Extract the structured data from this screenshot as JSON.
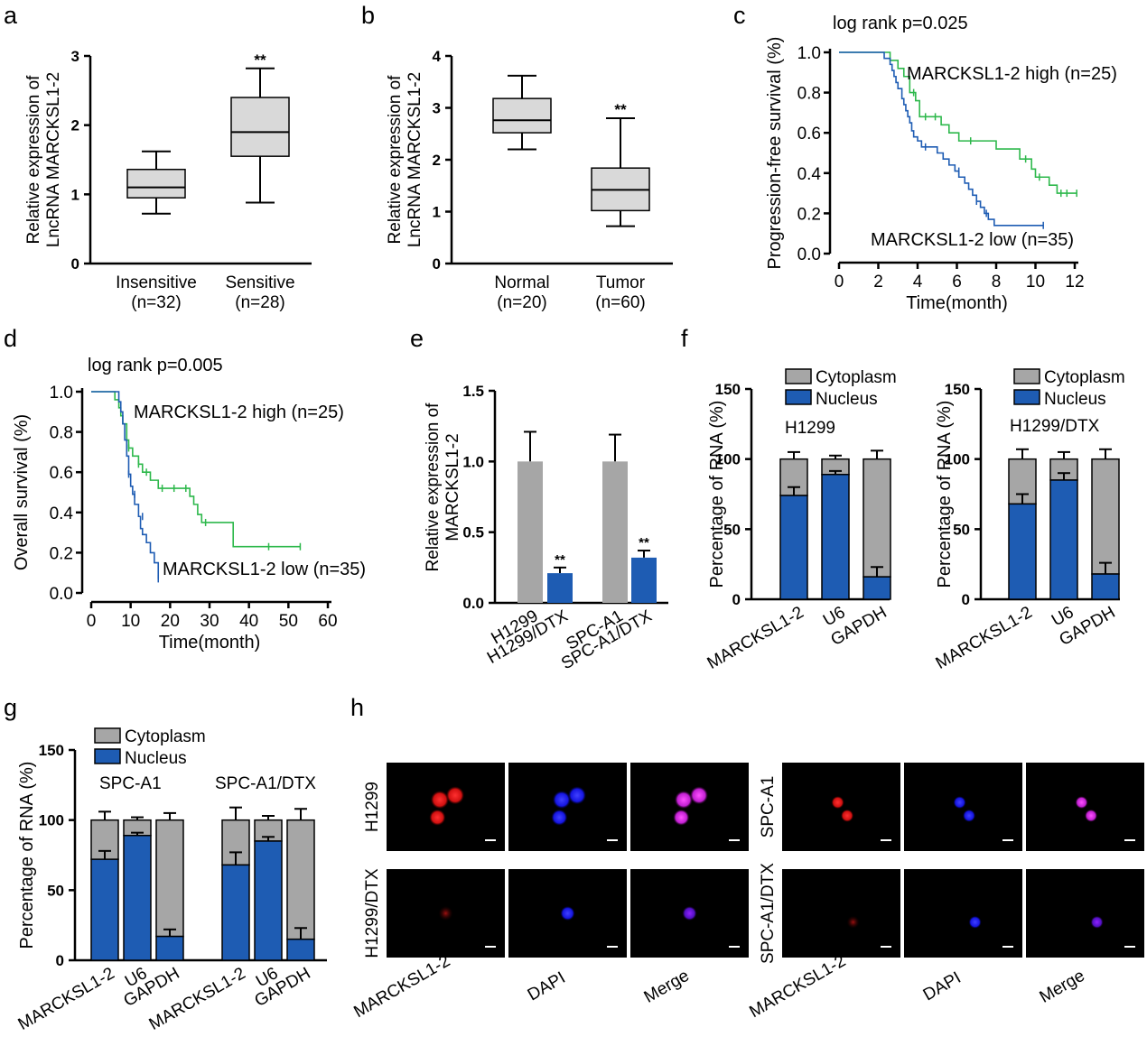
{
  "colors": {
    "gray": "#a6a6a6",
    "box": "#d9d9d9",
    "blue": "#1e5cb3",
    "green": "#2db84b",
    "bg": "#ffffff",
    "black": "#000000"
  },
  "panel_labels": [
    "a",
    "b",
    "c",
    "d",
    "e",
    "f",
    "g",
    "h"
  ],
  "chart_data": [
    {
      "panel": "a",
      "type": "box",
      "ylabel_lines": [
        "Relative expression of",
        "LncRNA MARCKSL1-2"
      ],
      "ylim": [
        0,
        3
      ],
      "yticks": [
        0,
        1,
        2,
        3
      ],
      "categories": [
        {
          "label": [
            "Insensitive",
            "(n=32)"
          ],
          "min": 0.72,
          "q1": 0.95,
          "median": 1.1,
          "q3": 1.36,
          "max": 1.62,
          "sig": ""
        },
        {
          "label": [
            "Sensitive",
            "(n=28)"
          ],
          "min": 0.88,
          "q1": 1.55,
          "median": 1.9,
          "q3": 2.4,
          "max": 2.82,
          "sig": "**"
        }
      ]
    },
    {
      "panel": "b",
      "type": "box",
      "ylabel_lines": [
        "Relative expression of",
        "LncRNA MARCKSL1-2"
      ],
      "ylim": [
        0,
        4
      ],
      "yticks": [
        0,
        1,
        2,
        3,
        4
      ],
      "categories": [
        {
          "label": [
            "Normal",
            "(n=20)"
          ],
          "min": 2.2,
          "q1": 2.52,
          "median": 2.76,
          "q3": 3.18,
          "max": 3.62,
          "sig": ""
        },
        {
          "label": [
            "Tumor",
            "(n=60)"
          ],
          "min": 0.72,
          "q1": 1.02,
          "median": 1.42,
          "q3": 1.84,
          "max": 2.8,
          "sig": "**"
        }
      ]
    },
    {
      "panel": "c",
      "type": "line",
      "annotation": "log rank p=0.025",
      "ylabel": "Progression-free survival (%)",
      "xlabel": "Time(month)",
      "xlim": [
        0,
        12
      ],
      "xticks": [
        0,
        2,
        4,
        6,
        8,
        10,
        12
      ],
      "ylim": [
        0,
        1
      ],
      "yticks": [
        "0.0",
        "0.2",
        "0.4",
        "0.6",
        "0.8",
        "1.0"
      ],
      "series": [
        {
          "name": "MARCKSL1-2 high (n=25)",
          "color": "#2db84b",
          "points": [
            [
              0,
              1
            ],
            [
              1.8,
              1
            ],
            [
              2.6,
              0.96
            ],
            [
              3.0,
              0.92
            ],
            [
              3.3,
              0.88
            ],
            [
              3.6,
              0.8
            ],
            [
              3.9,
              0.76
            ],
            [
              4.1,
              0.68
            ],
            [
              5.2,
              0.64
            ],
            [
              5.6,
              0.6
            ],
            [
              6.1,
              0.56
            ],
            [
              8.0,
              0.52
            ],
            [
              9.2,
              0.47
            ],
            [
              9.8,
              0.42
            ],
            [
              10.0,
              0.38
            ],
            [
              10.7,
              0.34
            ],
            [
              11.1,
              0.3
            ],
            [
              12.1,
              0.3
            ]
          ],
          "censor": [
            [
              3.8,
              0.8
            ],
            [
              4.4,
              0.68
            ],
            [
              4.9,
              0.68
            ],
            [
              6.7,
              0.56
            ],
            [
              9.5,
              0.47
            ],
            [
              10.2,
              0.38
            ],
            [
              11.3,
              0.3
            ],
            [
              11.6,
              0.3
            ],
            [
              12.1,
              0.3
            ]
          ]
        },
        {
          "name": "MARCKSL1-2 low (n=35)",
          "color": "#1e5cb3",
          "points": [
            [
              0,
              1
            ],
            [
              1.8,
              1
            ],
            [
              2.3,
              0.97
            ],
            [
              2.6,
              0.94
            ],
            [
              2.7,
              0.91
            ],
            [
              2.8,
              0.88
            ],
            [
              2.9,
              0.85
            ],
            [
              3.0,
              0.82
            ],
            [
              3.2,
              0.77
            ],
            [
              3.3,
              0.74
            ],
            [
              3.4,
              0.71
            ],
            [
              3.5,
              0.68
            ],
            [
              3.6,
              0.65
            ],
            [
              3.7,
              0.61
            ],
            [
              3.8,
              0.58
            ],
            [
              4.0,
              0.56
            ],
            [
              4.2,
              0.53
            ],
            [
              5.0,
              0.5
            ],
            [
              5.3,
              0.47
            ],
            [
              5.6,
              0.44
            ],
            [
              5.9,
              0.41
            ],
            [
              6.1,
              0.38
            ],
            [
              6.4,
              0.35
            ],
            [
              6.6,
              0.32
            ],
            [
              6.8,
              0.29
            ],
            [
              7.0,
              0.26
            ],
            [
              7.2,
              0.23
            ],
            [
              7.4,
              0.2
            ],
            [
              7.6,
              0.17
            ],
            [
              7.9,
              0.14
            ],
            [
              10.4,
              0.14
            ]
          ],
          "censor": [
            [
              4.4,
              0.53
            ],
            [
              6.1,
              0.41
            ],
            [
              7.0,
              0.26
            ],
            [
              7.5,
              0.2
            ],
            [
              10.4,
              0.14
            ]
          ]
        }
      ]
    },
    {
      "panel": "d",
      "type": "line",
      "annotation": "log rank p=0.005",
      "ylabel": "Overall survival (%)",
      "xlabel": "Time(month)",
      "xlim": [
        0,
        60
      ],
      "xticks": [
        0,
        10,
        20,
        30,
        40,
        50,
        60
      ],
      "ylim": [
        0,
        1
      ],
      "yticks": [
        "0.0",
        "0.2",
        "0.4",
        "0.6",
        "0.8",
        "1.0"
      ],
      "series": [
        {
          "name": "MARCKSL1-2 high (n=25)",
          "color": "#2db84b",
          "points": [
            [
              0,
              1
            ],
            [
              5,
              1
            ],
            [
              6,
              0.96
            ],
            [
              7,
              0.92
            ],
            [
              7.5,
              0.88
            ],
            [
              8,
              0.84
            ],
            [
              9,
              0.76
            ],
            [
              9.5,
              0.72
            ],
            [
              10.5,
              0.68
            ],
            [
              12,
              0.64
            ],
            [
              13,
              0.6
            ],
            [
              15,
              0.56
            ],
            [
              17,
              0.52
            ],
            [
              25,
              0.48
            ],
            [
              26,
              0.44
            ],
            [
              27,
              0.39
            ],
            [
              28,
              0.35
            ],
            [
              36,
              0.23
            ],
            [
              53,
              0.23
            ]
          ],
          "censor": [
            [
              9.5,
              0.72
            ],
            [
              12,
              0.64
            ],
            [
              14,
              0.6
            ],
            [
              18,
              0.52
            ],
            [
              21,
              0.52
            ],
            [
              24,
              0.52
            ],
            [
              29,
              0.35
            ],
            [
              45,
              0.23
            ],
            [
              53,
              0.23
            ]
          ]
        },
        {
          "name": "MARCKSL1-2 low (n=35)",
          "color": "#1e5cb3",
          "points": [
            [
              0,
              1
            ],
            [
              6,
              1
            ],
            [
              7,
              0.95
            ],
            [
              7.5,
              0.9
            ],
            [
              8,
              0.84
            ],
            [
              8.5,
              0.76
            ],
            [
              9,
              0.68
            ],
            [
              9.5,
              0.59
            ],
            [
              10,
              0.53
            ],
            [
              10.5,
              0.49
            ],
            [
              11,
              0.44
            ],
            [
              12,
              0.38
            ],
            [
              12.5,
              0.32
            ],
            [
              13,
              0.29
            ],
            [
              14,
              0.25
            ],
            [
              15,
              0.2
            ],
            [
              16,
              0.15
            ],
            [
              17,
              0.07
            ]
          ],
          "censor": [
            [
              9.5,
              0.59
            ],
            [
              11,
              0.49
            ],
            [
              13,
              0.38
            ],
            [
              17,
              0.07
            ]
          ]
        }
      ]
    },
    {
      "panel": "e",
      "type": "bar",
      "ylabel_lines": [
        "Relative expression of",
        "MARCKSL1-2"
      ],
      "ylim": [
        0,
        1.5
      ],
      "yticks": [
        "0.0",
        "0.5",
        "1.0",
        "1.5"
      ],
      "categories": [
        "H1299",
        "H1299/DTX",
        "SPC-A1",
        "SPC-A1/DTX"
      ],
      "values": [
        1.0,
        0.21,
        1.0,
        0.32
      ],
      "errors": [
        0.21,
        0.04,
        0.19,
        0.05
      ],
      "sig": [
        "",
        "**",
        "",
        "**"
      ]
    },
    {
      "panel": "f",
      "type": "stacked_bar",
      "subtitle": "H1299",
      "ylabel": "Percentage of RNA (%)",
      "ylim": [
        0,
        150
      ],
      "yticks": [
        0,
        50,
        100,
        150
      ],
      "categories": [
        "MARCKSL1-2",
        "U6",
        "GAPDH"
      ],
      "series": [
        {
          "name": "Cytoplasm",
          "values": [
            26,
            11,
            84
          ],
          "errors": [
            5,
            2.5,
            6
          ]
        },
        {
          "name": "Nucleus",
          "values": [
            74,
            89,
            16
          ],
          "errors": [
            6,
            2.5,
            7
          ]
        }
      ]
    },
    {
      "panel": "f2",
      "type": "stacked_bar",
      "subtitle": "H1299/DTX",
      "ylabel": "Percentage of RNA (%)",
      "ylim": [
        0,
        150
      ],
      "yticks": [
        0,
        50,
        100,
        150
      ],
      "categories": [
        "MARCKSL1-2",
        "U6",
        "GAPDH"
      ],
      "series": [
        {
          "name": "Cytoplasm",
          "values": [
            32,
            15,
            82
          ],
          "errors": [
            7,
            5,
            7
          ]
        },
        {
          "name": "Nucleus",
          "values": [
            68,
            85,
            18
          ],
          "errors": [
            7,
            5,
            8
          ]
        }
      ]
    },
    {
      "panel": "g",
      "type": "stacked_bar",
      "ylabel": "Percentage of RNA (%)",
      "ylim": [
        0,
        150
      ],
      "yticks": [
        0,
        50,
        100,
        150
      ],
      "groups": [
        {
          "subtitle": "SPC-A1",
          "categories": [
            "MARCKSL1-2",
            "U6",
            "GAPDH"
          ],
          "series": [
            {
              "name": "Cytoplasm",
              "values": [
                28,
                11,
                83
              ],
              "errors": [
                6,
                2,
                5
              ]
            },
            {
              "name": "Nucleus",
              "values": [
                72,
                89,
                17
              ],
              "errors": [
                6,
                2,
                5
              ]
            }
          ]
        },
        {
          "subtitle": "SPC-A1/DTX",
          "categories": [
            "MARCKSL1-2",
            "U6",
            "GAPDH"
          ],
          "series": [
            {
              "name": "Cytoplasm",
              "values": [
                32,
                15,
                85
              ],
              "errors": [
                9,
                3,
                8
              ]
            },
            {
              "name": "Nucleus",
              "values": [
                68,
                85,
                15
              ],
              "errors": [
                9,
                3,
                8
              ]
            }
          ]
        }
      ]
    }
  ],
  "panel_h": {
    "left": {
      "rows": [
        "H1299",
        "H1299/DTX"
      ],
      "columns": [
        "MARCKSL1-2",
        "DAPI",
        "Merge"
      ]
    },
    "right": {
      "rows": [
        "SPC-A1",
        "SPC-A1/DTX"
      ],
      "columns": [
        "MARCKSL1-2",
        "DAPI",
        "Merge"
      ]
    }
  }
}
